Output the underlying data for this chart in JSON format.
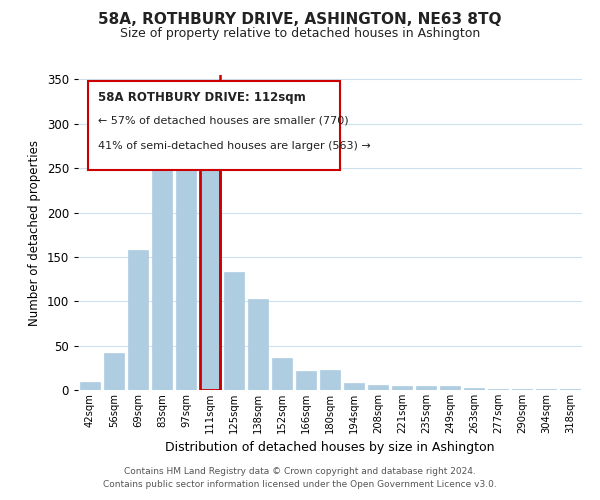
{
  "title": "58A, ROTHBURY DRIVE, ASHINGTON, NE63 8TQ",
  "subtitle": "Size of property relative to detached houses in Ashington",
  "xlabel": "Distribution of detached houses by size in Ashington",
  "ylabel": "Number of detached properties",
  "bar_color": "#aecde1",
  "highlight_edge_color": "#cc0000",
  "categories": [
    "42sqm",
    "56sqm",
    "69sqm",
    "83sqm",
    "97sqm",
    "111sqm",
    "125sqm",
    "138sqm",
    "152sqm",
    "166sqm",
    "180sqm",
    "194sqm",
    "208sqm",
    "221sqm",
    "235sqm",
    "249sqm",
    "263sqm",
    "277sqm",
    "290sqm",
    "304sqm",
    "318sqm"
  ],
  "values": [
    9,
    42,
    158,
    280,
    282,
    256,
    133,
    103,
    36,
    21,
    23,
    8,
    6,
    5,
    4,
    5,
    2,
    1,
    1,
    1,
    1
  ],
  "highlight_index": 5,
  "ylim": [
    0,
    355
  ],
  "yticks": [
    0,
    50,
    100,
    150,
    200,
    250,
    300,
    350
  ],
  "annotation_title": "58A ROTHBURY DRIVE: 112sqm",
  "annotation_line1": "← 57% of detached houses are smaller (770)",
  "annotation_line2": "41% of semi-detached houses are larger (563) →",
  "footer_line1": "Contains HM Land Registry data © Crown copyright and database right 2024.",
  "footer_line2": "Contains public sector information licensed under the Open Government Licence v3.0.",
  "background_color": "#ffffff",
  "grid_color": "#cce0ee"
}
